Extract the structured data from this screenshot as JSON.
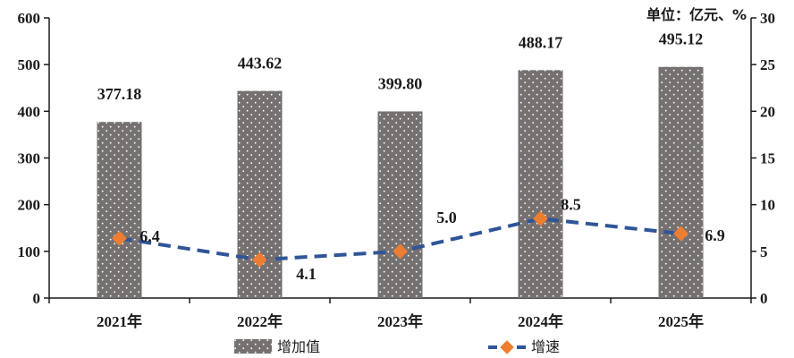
{
  "chart_data": {
    "type": "bar",
    "categories": [
      "2021年",
      "2022年",
      "2023年",
      "2024年",
      "2025年"
    ],
    "series": [
      {
        "name": "增加值",
        "type": "bar",
        "axis": "left",
        "values": [
          377.18,
          443.62,
          399.8,
          488.17,
          495.12
        ],
        "labels": [
          "377.18",
          "443.62",
          "399.80",
          "488.17",
          "495.12"
        ]
      },
      {
        "name": "增速",
        "type": "line",
        "axis": "right",
        "values": [
          6.4,
          4.1,
          5.0,
          8.5,
          6.9
        ],
        "labels": [
          "6.4",
          "4.1",
          "5.0",
          "8.5",
          "6.9"
        ]
      }
    ],
    "unit_label": "单位：亿元、%",
    "y_left": {
      "min": 0,
      "max": 600,
      "ticks": [
        "0",
        "100",
        "200",
        "300",
        "400",
        "500",
        "600"
      ]
    },
    "y_right": {
      "min": 0,
      "max": 30,
      "ticks": [
        "0",
        "5",
        "10",
        "15",
        "20",
        "25",
        "30"
      ]
    },
    "legend_position": "bottom",
    "grid": false,
    "colors": {
      "bar": "#767171",
      "bar_dots": "#ffffff",
      "line": "#2F5597",
      "marker": "#ED7D31",
      "axis": "#1a1a1a"
    }
  }
}
